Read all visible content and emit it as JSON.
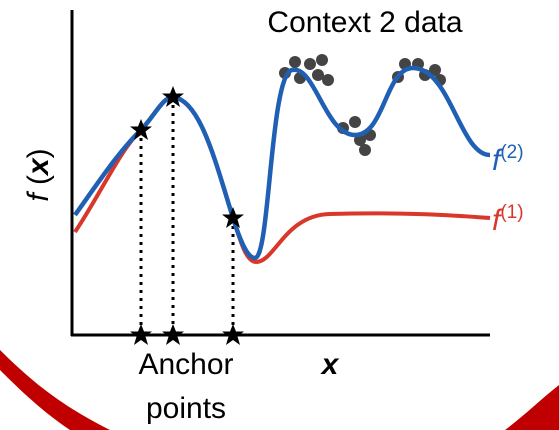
{
  "title": "Context 2 data",
  "y_axis_label": [
    "f",
    " (",
    "x",
    ")"
  ],
  "x_axis_label": "x",
  "anchor_label": [
    "Anchor",
    "points"
  ],
  "curve_labels": [
    {
      "base": "f",
      "superscript": "(2)"
    },
    {
      "base": "f",
      "superscript": "(1)"
    }
  ]
}
